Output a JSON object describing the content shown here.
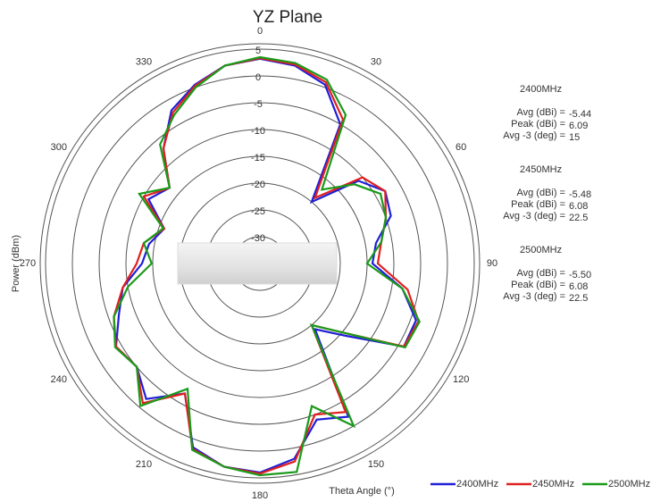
{
  "chart_data": {
    "type": "polar",
    "title": "YZ Plane",
    "y_label": "Power (dBm)",
    "x_label": "Theta Angle (°)",
    "theta": [
      0,
      10,
      20,
      30,
      40,
      50,
      60,
      70,
      80,
      90,
      100,
      110,
      120,
      130,
      140,
      150,
      160,
      170,
      180,
      190,
      200,
      210,
      220,
      230,
      240,
      250,
      260,
      270,
      280,
      290,
      300,
      310,
      320,
      330,
      340,
      350
    ],
    "rlim": [
      -35,
      5
    ],
    "rticks": [
      5,
      0,
      -5,
      -10,
      -15,
      -20,
      -25,
      -30
    ],
    "thetaticks": [
      0,
      30,
      60,
      90,
      120,
      150,
      180,
      210,
      240,
      270,
      300,
      330
    ],
    "series": [
      {
        "name": "2400MHz",
        "color": "#1f1fd6",
        "values": [
          3.2,
          2.5,
          0.5,
          -5,
          -20,
          -11,
          -8,
          -9,
          -13,
          -14,
          -8,
          -4,
          -4,
          -14,
          -19,
          -2,
          -4,
          2,
          4,
          3.5,
          1.5,
          -7,
          -2,
          -5,
          -4,
          -7,
          -9,
          -13,
          -14,
          -16,
          -11,
          -13,
          -7,
          -2,
          0.5,
          2.5
        ]
      },
      {
        "name": "2450MHz",
        "color": "#e01f1f",
        "values": [
          3.3,
          2.7,
          1,
          -4,
          -19,
          -10,
          -8,
          -10,
          -12,
          -13,
          -7,
          -3.5,
          -4,
          -15,
          -20,
          -3,
          -5,
          2.5,
          4.2,
          3.5,
          1.8,
          -7,
          -1,
          -5,
          -4,
          -6,
          -9,
          -12,
          -13,
          -16,
          -10,
          -13,
          -7,
          -2.5,
          0.3,
          2.5
        ]
      },
      {
        "name": "2500MHz",
        "color": "#1a9a1a",
        "values": [
          3.5,
          3,
          1.5,
          -3,
          -17,
          -12,
          -9,
          -10,
          -12,
          -15,
          -8,
          -3.3,
          -3.7,
          -15,
          -20,
          0,
          -6.7,
          4.5,
          4.5,
          3.5,
          2,
          -8,
          -0.3,
          -5,
          -3.8,
          -6,
          -10,
          -14.8,
          -13,
          -15.8,
          -9,
          -13,
          -6,
          -3,
          0,
          2.5
        ]
      }
    ],
    "stats": [
      {
        "band": "2400MHz",
        "rows": [
          [
            "Avg (dBi) =",
            "-5.44"
          ],
          [
            "Peak (dBi) =",
            "6.09"
          ],
          [
            "Avg -3 (deg) =",
            "15"
          ]
        ]
      },
      {
        "band": "2450MHz",
        "rows": [
          [
            "Avg (dBi) =",
            "-5.48"
          ],
          [
            "Peak (dBi) =",
            "6.08"
          ],
          [
            "Avg -3 (deg) =",
            "22.5"
          ]
        ]
      },
      {
        "band": "2500MHz",
        "rows": [
          [
            "Avg (dBi) =",
            "-5.50"
          ],
          [
            "Peak (dBi) =",
            "6.08"
          ],
          [
            "Avg -3 (deg) =",
            "22.5"
          ]
        ]
      }
    ]
  }
}
